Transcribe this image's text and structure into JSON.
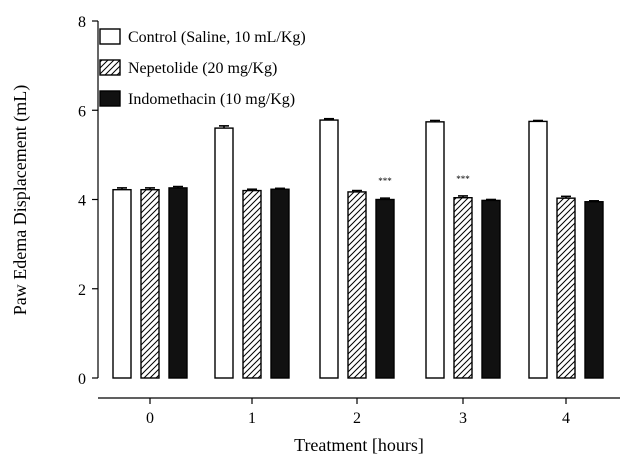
{
  "chart_data": {
    "type": "bar",
    "title": "",
    "xlabel": "Treatment [hours]",
    "ylabel": "Paw Edema Displacement (mL)",
    "ylim": [
      0,
      8
    ],
    "yticks": [
      "0",
      "2",
      "4",
      "6",
      "8"
    ],
    "categories": [
      "0",
      "1",
      "2",
      "3",
      "4"
    ],
    "legend_position": "top-left",
    "series": [
      {
        "name": "Control (Saline, 10 mL/Kg)",
        "fill": "open",
        "values": [
          4.22,
          5.6,
          5.78,
          5.74,
          5.75
        ],
        "errors": [
          0.04,
          0.05,
          0.03,
          0.03,
          0.02
        ]
      },
      {
        "name": "Nepetolide (20 mg/Kg)",
        "fill": "hatched",
        "values": [
          4.22,
          4.2,
          4.17,
          4.04,
          4.03
        ],
        "errors": [
          0.04,
          0.03,
          0.03,
          0.04,
          0.04
        ]
      },
      {
        "name": "Indomethacin (10 mg/Kg)",
        "fill": "solid",
        "values": [
          4.26,
          4.23,
          4.0,
          3.98,
          3.95
        ],
        "errors": [
          0.03,
          0.02,
          0.03,
          0.02,
          0.02
        ]
      }
    ],
    "annotations": [
      {
        "text": "***",
        "category": "2",
        "series_index": 2
      },
      {
        "text": "***",
        "category": "3",
        "series_index": 1
      }
    ],
    "colors": {
      "axis": "#000000",
      "solid_fill": "#111111",
      "open_fill": "#ffffff"
    }
  }
}
